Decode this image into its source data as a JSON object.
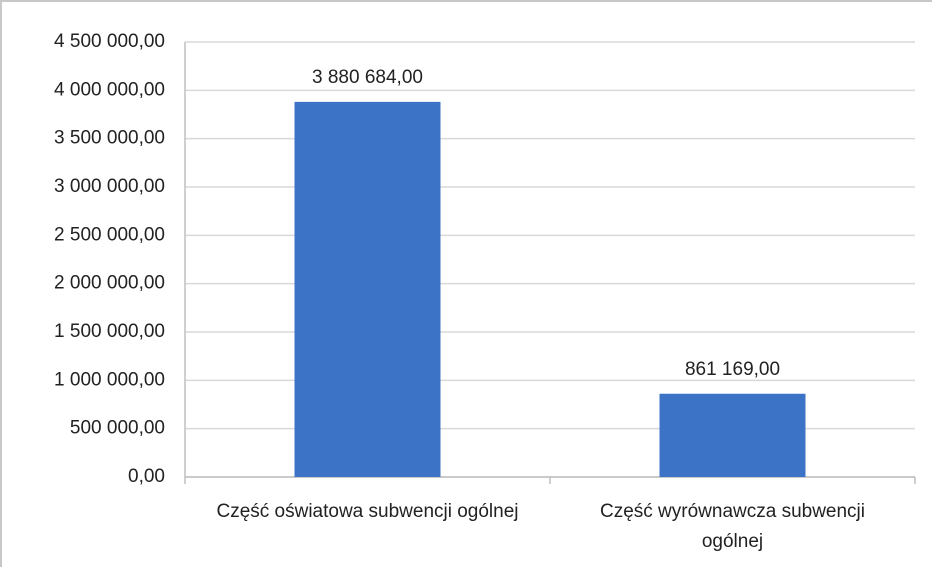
{
  "chart_data": {
    "type": "bar",
    "categories": [
      "Część oświatowa subwencji ogólnej",
      "Część wyrównawcza subwencji ogólnej"
    ],
    "values": [
      3880684,
      861169
    ],
    "value_labels": [
      "3 880 684,00",
      "861 169,00"
    ],
    "color": "#3c73c6",
    "ylim": [
      0,
      4500000
    ],
    "yticks": [
      {
        "value": 0,
        "label": "0,00"
      },
      {
        "value": 500000,
        "label": "500 000,00"
      },
      {
        "value": 1000000,
        "label": "1 000 000,00"
      },
      {
        "value": 1500000,
        "label": "1 500 000,00"
      },
      {
        "value": 2000000,
        "label": "2 000 000,00"
      },
      {
        "value": 2500000,
        "label": "2 500 000,00"
      },
      {
        "value": 3000000,
        "label": "3 000 000,00"
      },
      {
        "value": 3500000,
        "label": "3 500 000,00"
      },
      {
        "value": 4000000,
        "label": "4 000 000,00"
      },
      {
        "value": 4500000,
        "label": "4 500 000,00"
      }
    ],
    "grid": true
  }
}
